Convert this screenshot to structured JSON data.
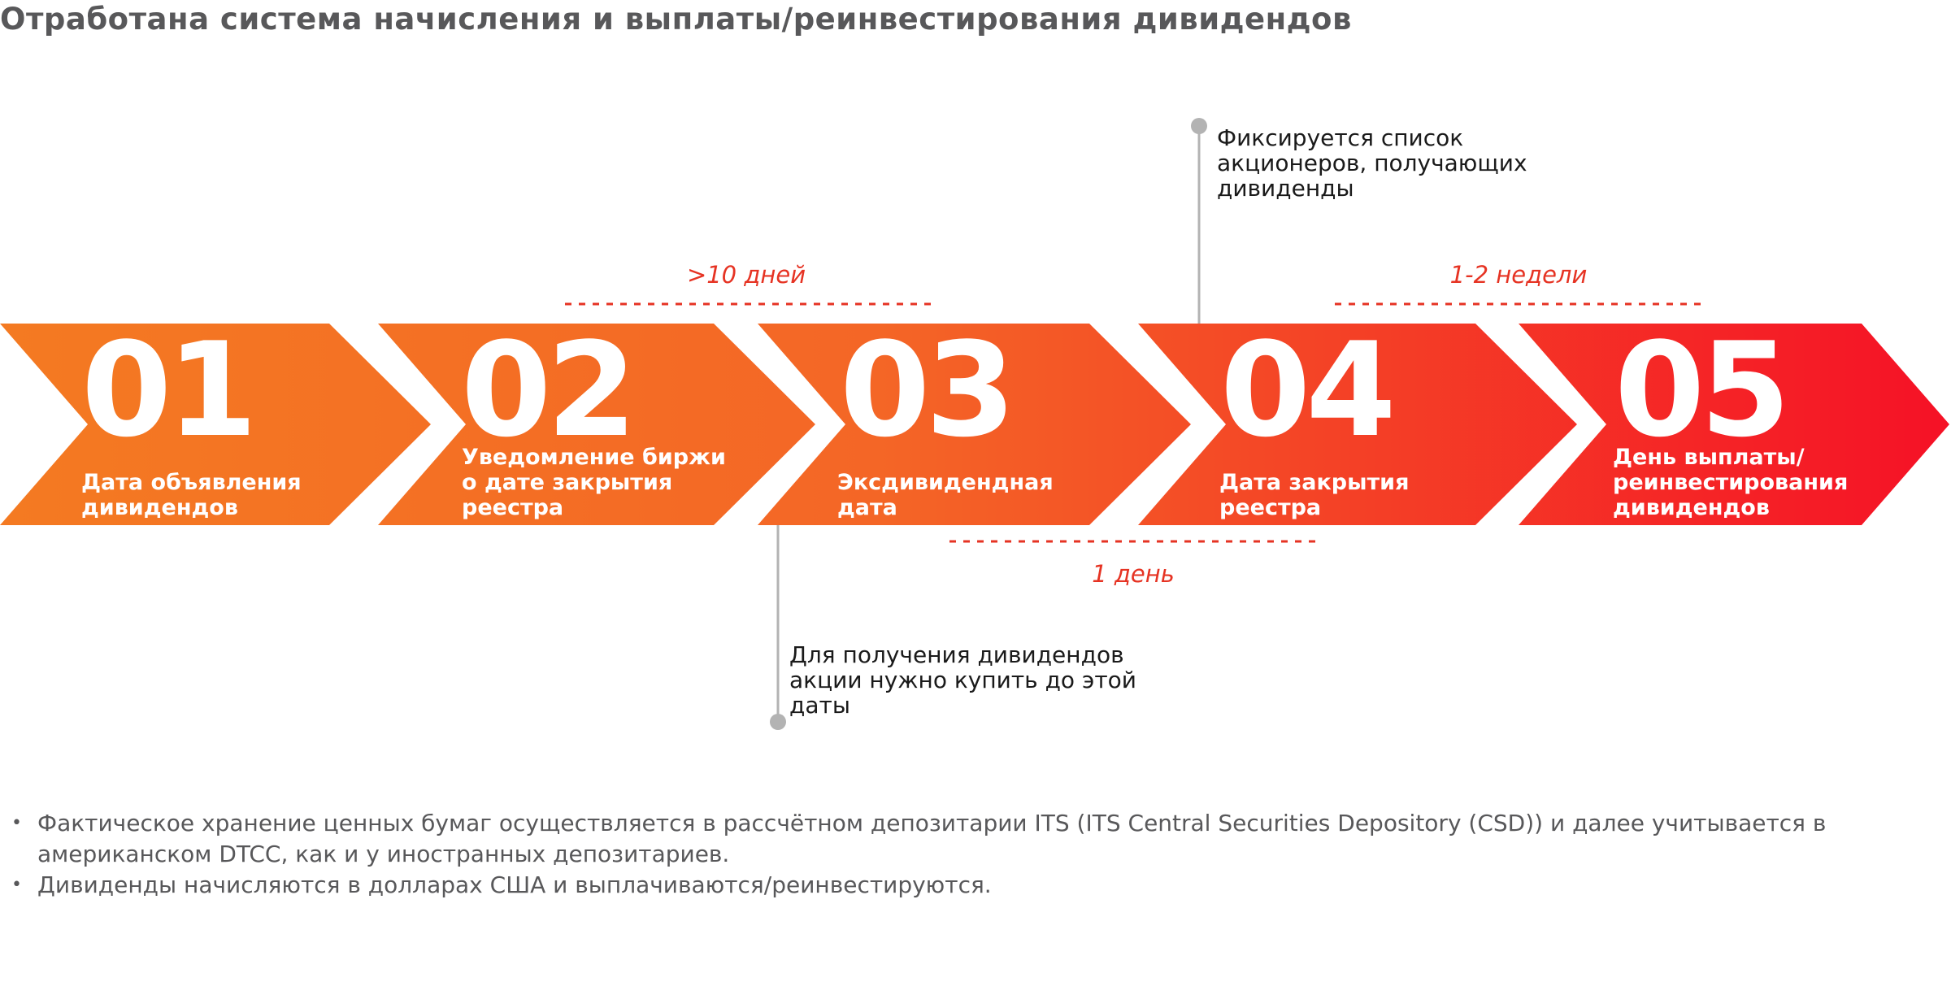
{
  "title": "Отработана система начисления и выплаты/реинвестирования дивидендов",
  "steps": [
    {
      "number": "01",
      "label": [
        "Дата объявления",
        "дивидендов"
      ]
    },
    {
      "number": "02",
      "label": [
        "Уведомление биржи",
        "о дате закрытия",
        "реестра"
      ]
    },
    {
      "number": "03",
      "label": [
        "Эксдивидендная",
        "дата"
      ]
    },
    {
      "number": "04",
      "label": [
        "Дата закрытия",
        "реестра"
      ]
    },
    {
      "number": "05",
      "label": [
        "День выплаты/",
        "реинвестирования",
        "дивидендов"
      ]
    }
  ],
  "intervals": {
    "between_2_3": ">10 дней",
    "between_4_5": "1-2 недели",
    "between_3_4": "1 день"
  },
  "callouts": {
    "record_list": "Фиксируется список\nакционеров, получающих\nдивиденды",
    "buy_before": "Для получения дивидендов\nакции нужно купить до этой\nдаты"
  },
  "bullets": [
    "Фактическое хранение ценных бумаг осуществляется в рассчётном депозитарии ITS (ITS Central Securities Depository (CSD)) и далее учитывается в американском DTCC, как и у иностранных депозитариев.",
    "Дивиденды начисляются в долларах США и выплачиваются/реинвестируются."
  ],
  "colors": {
    "gradient_start": "#f47a22",
    "gradient_end": "#f51126",
    "accent": "#e63323",
    "connector": "#b3b3b3",
    "title": "#58585a"
  }
}
